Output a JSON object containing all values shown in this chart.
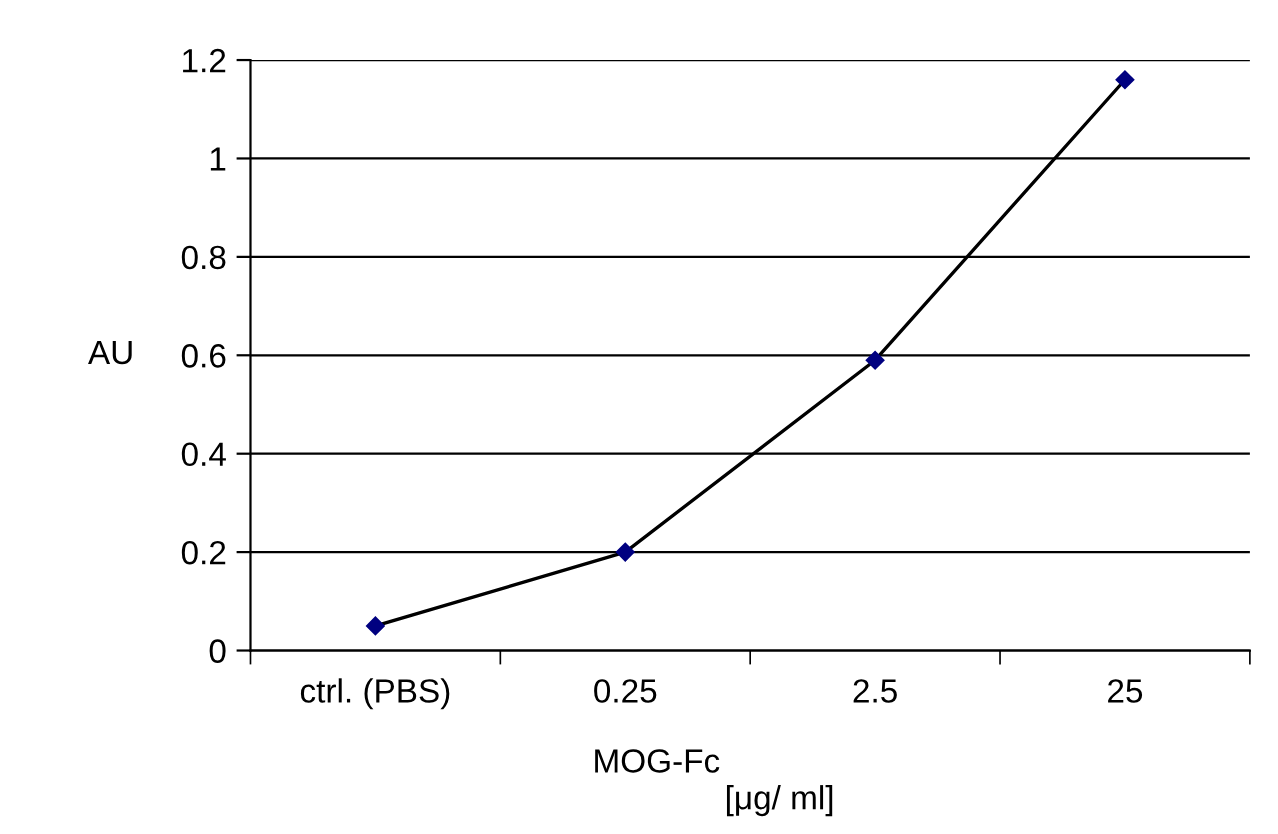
{
  "chart_data": {
    "type": "line",
    "xlabel": "MOG-Fc",
    "ylabel": "AU",
    "annotations": [
      "[μg/ ml]"
    ],
    "categories": [
      "ctrl. (PBS)",
      "0.25",
      "2.5",
      "25"
    ],
    "series": [
      {
        "color": "#000080",
        "values": [
          0.05,
          0.2,
          0.59,
          1.16
        ]
      }
    ],
    "ylim": [
      0,
      1.2
    ],
    "yticks": [
      0,
      0.2,
      0.4,
      0.6,
      0.8,
      1,
      1.2
    ],
    "grid": "y",
    "marker": "diamond",
    "line_style": "solid",
    "legend": false
  }
}
